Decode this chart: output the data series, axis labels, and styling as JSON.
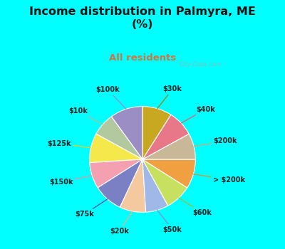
{
  "title": "Income distribution in Palmyra, ME\n(%)",
  "subtitle": "All residents",
  "title_color": "#111111",
  "subtitle_color": "#cc7744",
  "background_cyan": "#00FFFF",
  "background_chart": "#e0f5ee",
  "labels": [
    "$100k",
    "$10k",
    "$125k",
    "$150k",
    "$75k",
    "$20k",
    "$50k",
    "$60k",
    "> $200k",
    "$200k",
    "$40k",
    "$30k"
  ],
  "values": [
    10,
    7,
    9,
    8,
    9,
    8,
    7,
    8,
    9,
    8,
    8,
    9
  ],
  "colors": [
    "#9b8ec4",
    "#b2c9a0",
    "#f5e84a",
    "#f4a0b0",
    "#7b7fc4",
    "#f5c9a0",
    "#a0b8e8",
    "#c8e060",
    "#f0a040",
    "#c8b898",
    "#e87888",
    "#c8a820"
  ],
  "startangle": 90,
  "watermark": "City-Data.com",
  "line_colors": [
    "#9090d0",
    "#b0c090",
    "#e0d020",
    "#f090a0",
    "#5050b0",
    "#f0b080",
    "#8090d0",
    "#a0c030",
    "#e09030",
    "#d0a870",
    "#e06070",
    "#a08010"
  ]
}
